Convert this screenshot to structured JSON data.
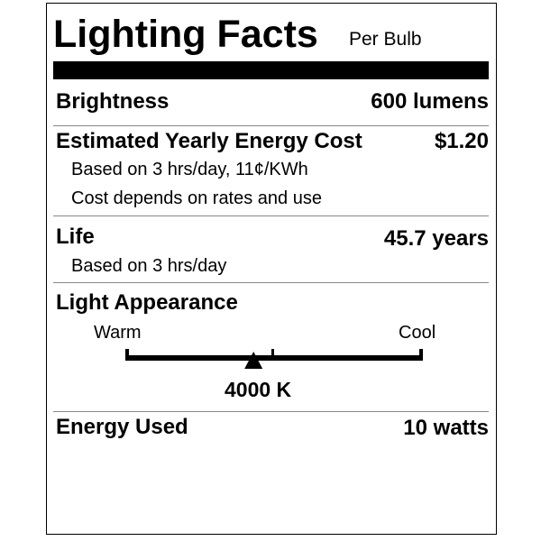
{
  "title": "Lighting Facts",
  "subtitle": "Per Bulb",
  "brightness": {
    "label": "Brightness",
    "value": "600 lumens"
  },
  "cost": {
    "label": "Estimated Yearly Energy Cost",
    "value": "$1.20",
    "note1": "Based on 3 hrs/day, 11¢/KWh",
    "note2": "Cost depends on rates and use"
  },
  "life": {
    "label": "Life",
    "value": "45.7 years",
    "note": "Based on 3 hrs/day"
  },
  "appearance": {
    "label": "Light Appearance",
    "warm": "Warm",
    "cool": "Cool",
    "value": "4000 K",
    "marker_fraction": 0.43
  },
  "energy": {
    "label": "Energy Used",
    "value": "10 watts"
  }
}
